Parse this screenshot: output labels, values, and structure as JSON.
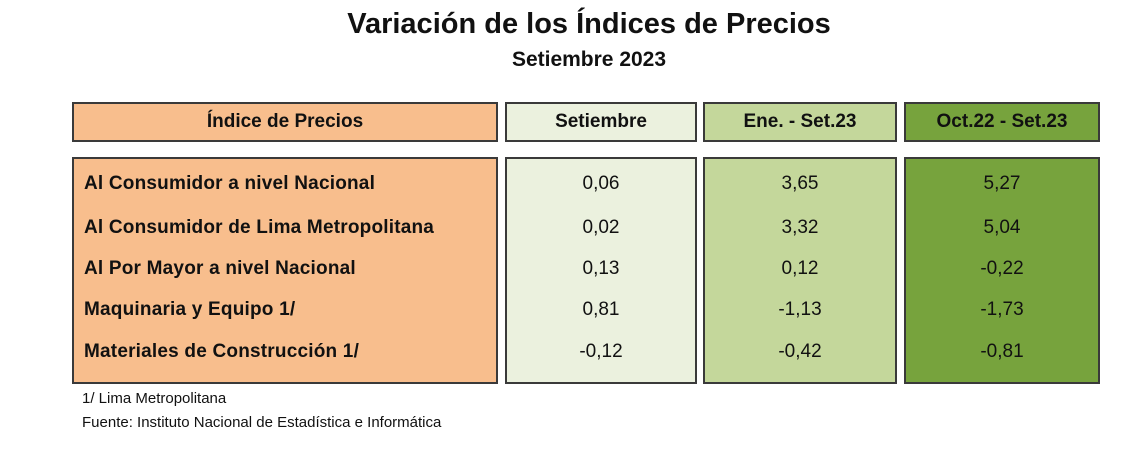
{
  "title": "Variación de los Índices de Precios",
  "subtitle": "Setiembre 2023",
  "headers": [
    "Índice de Precios",
    "Setiembre",
    "Ene. - Set.23",
    "Oct.22 - Set.23"
  ],
  "rows": [
    {
      "label": "Al Consumidor a nivel Nacional",
      "values": [
        "0,06",
        "3,65",
        "5,27"
      ]
    },
    {
      "label": "Al Consumidor de Lima Metropolitana",
      "values": [
        "0,02",
        "3,32",
        "5,04"
      ]
    },
    {
      "label": "Al Por Mayor a nivel Nacional",
      "values": [
        "0,13",
        "0,12",
        "-0,22"
      ]
    },
    {
      "label": "Maquinaria y Equipo 1/",
      "values": [
        "0,81",
        "-1,13",
        "-1,73"
      ]
    },
    {
      "label": "Materiales de Construcción 1/",
      "values": [
        "-0,12",
        "-0,42",
        "-0,81"
      ]
    }
  ],
  "notes": [
    "1/ Lima Metropolitana",
    "Fuente: Instituto Nacional de Estadística e Informática"
  ],
  "colors": {
    "label_column": "#f8be8d",
    "month_column": "#ebf1de",
    "ytd_column": "#c4d79b",
    "annual_column": "#77a33d"
  }
}
